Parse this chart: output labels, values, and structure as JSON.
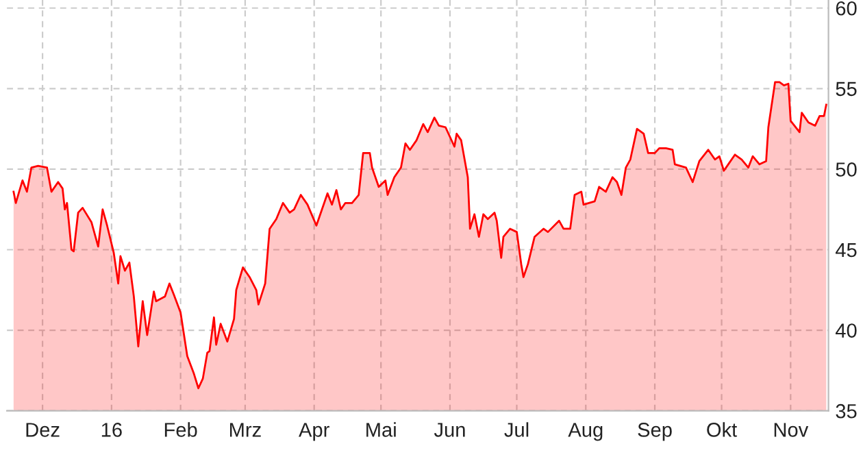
{
  "chart_data": {
    "type": "area",
    "x": [
      "2015-11-18",
      "2015-11-19",
      "2015-11-22",
      "2015-11-24",
      "2015-11-26",
      "2015-11-29",
      "2015-12-03",
      "2015-12-05",
      "2015-12-08",
      "2015-12-10",
      "2015-12-11",
      "2015-12-12",
      "2015-12-14",
      "2015-12-15",
      "2015-12-17",
      "2015-12-19",
      "2015-12-23",
      "2015-12-26",
      "2015-12-28",
      "2015-12-30",
      "2016-01-02",
      "2016-01-04",
      "2016-01-05",
      "2016-01-07",
      "2016-01-09",
      "2016-01-11",
      "2016-01-13",
      "2016-01-15",
      "2016-01-17",
      "2016-01-20",
      "2016-01-21",
      "2016-01-25",
      "2016-01-27",
      "2016-01-29",
      "2016-02-01",
      "2016-02-04",
      "2016-02-07",
      "2016-02-09",
      "2016-02-11",
      "2016-02-13",
      "2016-02-14",
      "2016-02-16",
      "2016-02-17",
      "2016-02-19",
      "2016-02-22",
      "2016-02-25",
      "2016-02-26",
      "2016-02-29",
      "2016-03-03",
      "2016-03-06",
      "2016-03-07",
      "2016-03-10",
      "2016-03-12",
      "2016-03-15",
      "2016-03-18",
      "2016-03-21",
      "2016-03-23",
      "2016-03-26",
      "2016-03-29",
      "2016-04-02",
      "2016-04-07",
      "2016-04-09",
      "2016-04-11",
      "2016-04-13",
      "2016-04-15",
      "2016-04-18",
      "2016-04-21",
      "2016-04-23",
      "2016-04-26",
      "2016-04-27",
      "2016-04-30",
      "2016-05-03",
      "2016-05-04",
      "2016-05-07",
      "2016-05-10",
      "2016-05-12",
      "2016-05-14",
      "2016-05-17",
      "2016-05-20",
      "2016-05-22",
      "2016-05-25",
      "2016-05-27",
      "2016-05-30",
      "2016-06-03",
      "2016-06-04",
      "2016-06-06",
      "2016-06-09",
      "2016-06-10",
      "2016-06-12",
      "2016-06-14",
      "2016-06-16",
      "2016-06-18",
      "2016-06-21",
      "2016-06-22",
      "2016-06-24",
      "2016-06-25",
      "2016-06-28",
      "2016-07-01",
      "2016-07-03",
      "2016-07-04",
      "2016-07-06",
      "2016-07-09",
      "2016-07-13",
      "2016-07-15",
      "2016-07-20",
      "2016-07-22",
      "2016-07-25",
      "2016-07-27",
      "2016-07-30",
      "2016-07-31",
      "2016-08-05",
      "2016-08-07",
      "2016-08-10",
      "2016-08-13",
      "2016-08-15",
      "2016-08-17",
      "2016-08-19",
      "2016-08-21",
      "2016-08-24",
      "2016-08-27",
      "2016-08-29",
      "2016-09-01",
      "2016-09-03",
      "2016-09-06",
      "2016-09-09",
      "2016-09-10",
      "2016-09-15",
      "2016-09-18",
      "2016-09-21",
      "2016-09-25",
      "2016-09-28",
      "2016-09-30",
      "2016-10-02",
      "2016-10-04",
      "2016-10-07",
      "2016-10-10",
      "2016-10-13",
      "2016-10-15",
      "2016-10-18",
      "2016-10-21",
      "2016-10-22",
      "2016-10-25",
      "2016-10-27",
      "2016-10-29",
      "2016-10-31",
      "2016-11-01",
      "2016-11-05",
      "2016-11-06",
      "2016-11-09",
      "2016-11-12",
      "2016-11-14",
      "2016-11-16",
      "2016-11-17"
    ],
    "series": [
      {
        "color": "#ff0000",
        "values": [
          48.6,
          47.9,
          49.3,
          48.6,
          50.1,
          50.2,
          50.1,
          48.6,
          49.2,
          48.8,
          47.5,
          47.9,
          45.0,
          44.9,
          47.3,
          47.6,
          46.7,
          45.2,
          47.5,
          46.5,
          44.8,
          42.9,
          44.6,
          43.7,
          44.2,
          42.1,
          39.0,
          41.8,
          39.7,
          42.4,
          41.8,
          42.1,
          42.9,
          42.2,
          41.1,
          38.4,
          37.3,
          36.4,
          37.0,
          38.6,
          38.7,
          40.8,
          39.1,
          40.4,
          39.3,
          40.7,
          42.5,
          43.9,
          43.3,
          42.5,
          41.6,
          42.9,
          46.3,
          46.9,
          47.9,
          47.3,
          47.5,
          48.4,
          47.8,
          46.5,
          48.5,
          47.8,
          48.7,
          47.5,
          47.9,
          47.9,
          48.4,
          51.0,
          51.0,
          50.1,
          48.9,
          49.3,
          48.4,
          49.5,
          50.1,
          51.6,
          51.2,
          51.8,
          52.8,
          52.3,
          53.2,
          52.7,
          52.6,
          51.4,
          52.2,
          51.8,
          49.5,
          46.3,
          47.2,
          45.8,
          47.2,
          46.9,
          47.3,
          46.8,
          44.5,
          45.8,
          46.3,
          46.1,
          44.1,
          43.3,
          44.1,
          45.8,
          46.3,
          46.1,
          46.8,
          46.3,
          46.3,
          48.4,
          48.6,
          47.8,
          48.0,
          48.9,
          48.6,
          49.5,
          49.2,
          48.4,
          50.1,
          50.6,
          52.5,
          52.2,
          51.0,
          51.0,
          51.3,
          51.3,
          51.2,
          50.3,
          50.1,
          49.2,
          50.5,
          51.2,
          50.6,
          50.8,
          49.9,
          50.3,
          50.9,
          50.6,
          50.1,
          50.8,
          50.3,
          50.5,
          52.6,
          55.4,
          55.4,
          55.2,
          55.3,
          53.0,
          52.3,
          53.5,
          52.9,
          52.7,
          53.3,
          53.3,
          54.0
        ]
      }
    ],
    "xlim": [
      "2015-11-15",
      "2016-11-18"
    ],
    "xticks": [
      {
        "value": "2015-12-01",
        "label": "Dez"
      },
      {
        "value": "2016-01-01",
        "label": "16"
      },
      {
        "value": "2016-02-01",
        "label": "Feb"
      },
      {
        "value": "2016-03-01",
        "label": "Mrz"
      },
      {
        "value": "2016-04-01",
        "label": "Apr"
      },
      {
        "value": "2016-05-01",
        "label": "Mai"
      },
      {
        "value": "2016-06-01",
        "label": "Jun"
      },
      {
        "value": "2016-07-01",
        "label": "Jul"
      },
      {
        "value": "2016-08-01",
        "label": "Aug"
      },
      {
        "value": "2016-09-01",
        "label": "Sep"
      },
      {
        "value": "2016-10-01",
        "label": "Okt"
      },
      {
        "value": "2016-11-01",
        "label": "Nov"
      }
    ],
    "ylim": [
      35,
      60.5
    ],
    "yticks": [
      35,
      40,
      45,
      50,
      55,
      60
    ],
    "grid": true,
    "line_style": "solid",
    "marker": "none"
  }
}
